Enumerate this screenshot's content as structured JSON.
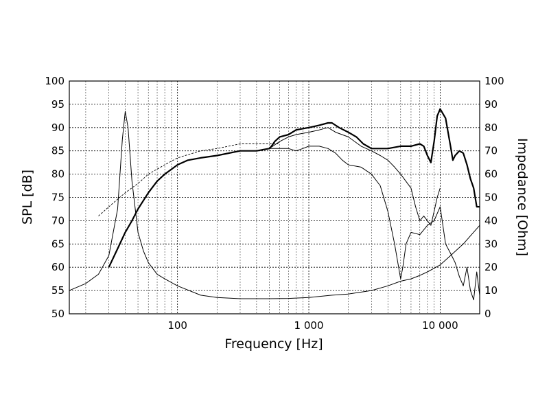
{
  "chart_data": {
    "type": "line",
    "title": "",
    "xlabel": "Frequency [Hz]",
    "ylabel": "SPL [dB]",
    "ylabel_right": "Impedance [Ohm]",
    "x_scale": "log",
    "xlim": [
      15,
      20000
    ],
    "ylim": [
      50,
      100
    ],
    "ylim_right": [
      0,
      100
    ],
    "x_ticks": [
      100,
      1000,
      10000
    ],
    "x_tick_labels": [
      "100",
      "1 000",
      "10 000"
    ],
    "y_ticks": [
      50,
      55,
      60,
      65,
      70,
      75,
      80,
      85,
      90,
      95,
      100
    ],
    "y_tick_labels": [
      "50",
      "55",
      "60",
      "65",
      "70",
      "75",
      "80",
      "85",
      "90",
      "95",
      "100"
    ],
    "y_right_ticks": [
      0,
      10,
      20,
      30,
      40,
      50,
      60,
      70,
      80,
      90,
      100
    ],
    "y_right_tick_labels": [
      "0",
      "10",
      "20",
      "30",
      "40",
      "50",
      "60",
      "70",
      "80",
      "90",
      "100"
    ],
    "grid": true,
    "series": [
      {
        "axis": "left",
        "style": "thick",
        "x": [
          30,
          35,
          40,
          45,
          50,
          60,
          70,
          80,
          100,
          120,
          150,
          200,
          300,
          400,
          500,
          520,
          550,
          600,
          700,
          800,
          1000,
          1200,
          1400,
          1500,
          1700,
          2000,
          2300,
          2600,
          3000,
          3500,
          4000,
          5000,
          6000,
          7000,
          7500,
          8000,
          8500,
          9000,
          9500,
          10000,
          11000,
          12000,
          12500,
          13000,
          14000,
          15000,
          16000,
          17000,
          18000,
          19000,
          20000
        ],
        "y": [
          60,
          64,
          67.5,
          70,
          72.5,
          76,
          78.5,
          80,
          82,
          83,
          83.5,
          84,
          85,
          85,
          85.5,
          86,
          87,
          88,
          88.5,
          89.5,
          90,
          90.5,
          91,
          91,
          90,
          89,
          88,
          86.5,
          85.5,
          85.5,
          85.5,
          86,
          86,
          86.5,
          86,
          84,
          82.5,
          87,
          92.5,
          94,
          92,
          86,
          83,
          84,
          85,
          84.5,
          82,
          79,
          77,
          73,
          73
        ]
      },
      {
        "axis": "left",
        "style": "thin",
        "x": [
          500,
          600,
          700,
          800,
          1000,
          1200,
          1400,
          1600,
          2000,
          2500,
          3000,
          3500,
          4000,
          4500,
          5000,
          6000,
          6500,
          7000,
          7500,
          8000,
          8500,
          9000,
          9500,
          10000
        ],
        "y": [
          85.5,
          87,
          88,
          88.5,
          89,
          89.5,
          90,
          89,
          88,
          86,
          85,
          84,
          83,
          81.5,
          80,
          77,
          73,
          70,
          71,
          70,
          69,
          72,
          75,
          77
        ]
      },
      {
        "axis": "left",
        "style": "thin",
        "x": [
          500,
          600,
          700,
          800,
          900,
          1000,
          1200,
          1400,
          1600,
          1800,
          2000,
          2500,
          3000,
          3500,
          4000,
          4500,
          5000,
          5200,
          5500,
          6000,
          7000,
          8000,
          9000,
          10000,
          11000,
          12000,
          13000,
          14000,
          15000,
          16000,
          17000,
          18000,
          19000,
          20000
        ],
        "y": [
          85.5,
          85.5,
          85.5,
          85,
          85.5,
          86,
          86,
          85.5,
          84.5,
          83,
          82,
          81.5,
          80,
          77.5,
          72,
          65,
          57.5,
          60,
          65,
          67.5,
          67,
          69,
          70,
          73,
          65,
          63,
          61,
          58,
          56,
          60,
          55,
          53,
          59,
          54
        ]
      },
      {
        "axis": "left",
        "style": "dashed",
        "x": [
          25,
          30,
          40,
          50,
          60,
          80,
          100,
          150,
          200,
          300,
          400,
          500,
          600
        ],
        "y": [
          71,
          73,
          76,
          78,
          80,
          82,
          83.5,
          85,
          85.5,
          86.5,
          86.5,
          86.5,
          86.5
        ]
      },
      {
        "axis": "right",
        "style": "thin",
        "x": [
          15,
          20,
          25,
          30,
          35,
          38,
          40,
          42,
          45,
          50,
          55,
          60,
          70,
          80,
          100,
          150,
          200,
          300,
          400,
          500,
          700,
          1000,
          1500,
          2000,
          3000,
          4000,
          5000,
          6000,
          7000,
          8000,
          10000,
          12000,
          15000,
          20000
        ],
        "y": [
          10,
          13,
          17,
          25,
          45,
          75,
          87,
          80,
          57,
          35,
          27,
          22,
          17,
          15,
          12,
          8,
          7,
          6.5,
          6.5,
          6.5,
          6.6,
          7,
          8,
          8.5,
          10,
          12,
          14,
          15,
          16.5,
          18,
          21,
          25,
          30,
          38
        ]
      }
    ]
  }
}
